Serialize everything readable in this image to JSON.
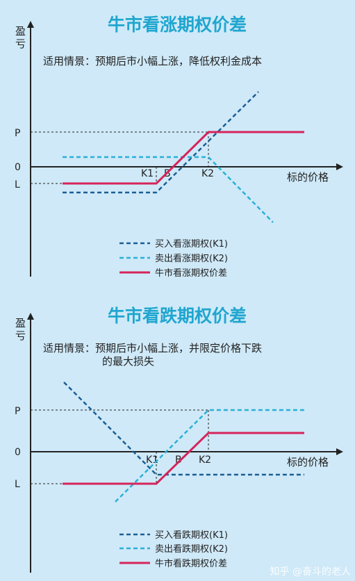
{
  "colors": {
    "background": "#cfe9f8",
    "title": "#1fa6cf",
    "buy_line": "#1b5e95",
    "sell_line": "#2ab0d6",
    "combo_line": "#d6245a",
    "axis": "#222222"
  },
  "panels": [
    {
      "title": "牛市看涨期权价差",
      "y_axis_label_chars": [
        "盈",
        "亏"
      ],
      "description": [
        "适用情景：预期后市小幅上涨，降低权利金成本"
      ],
      "x_axis_label": "标的价格",
      "y_ticks": {
        "P": "P",
        "zero": "0",
        "L": "L"
      },
      "x_ticks": {
        "K1": "K1",
        "B": "B",
        "K2": "K2"
      },
      "legend": [
        {
          "label": "买入看涨期权(K1)",
          "style": "buy"
        },
        {
          "label": "卖出看涨期权(K2)",
          "style": "sell"
        },
        {
          "label": "牛市看涨期权价差",
          "style": "combo"
        }
      ]
    },
    {
      "title": "牛市看跌期权价差",
      "y_axis_label_chars": [
        "盈",
        "亏"
      ],
      "description": [
        "适用情景：预期后市小幅上涨，并限定价格下跌",
        "的最大损失"
      ],
      "x_axis_label": "标的价格",
      "y_ticks": {
        "P": "P",
        "zero": "0",
        "L": "L"
      },
      "x_ticks": {
        "K1": "K1",
        "B": "B",
        "K2": "K2"
      },
      "legend": [
        {
          "label": "买入看跌期权(K1)",
          "style": "buy"
        },
        {
          "label": "卖出看跌期权(K2)",
          "style": "sell"
        },
        {
          "label": "牛市看跌期权价差",
          "style": "combo"
        }
      ]
    }
  ],
  "watermark": "知乎 @奋斗的老人"
}
